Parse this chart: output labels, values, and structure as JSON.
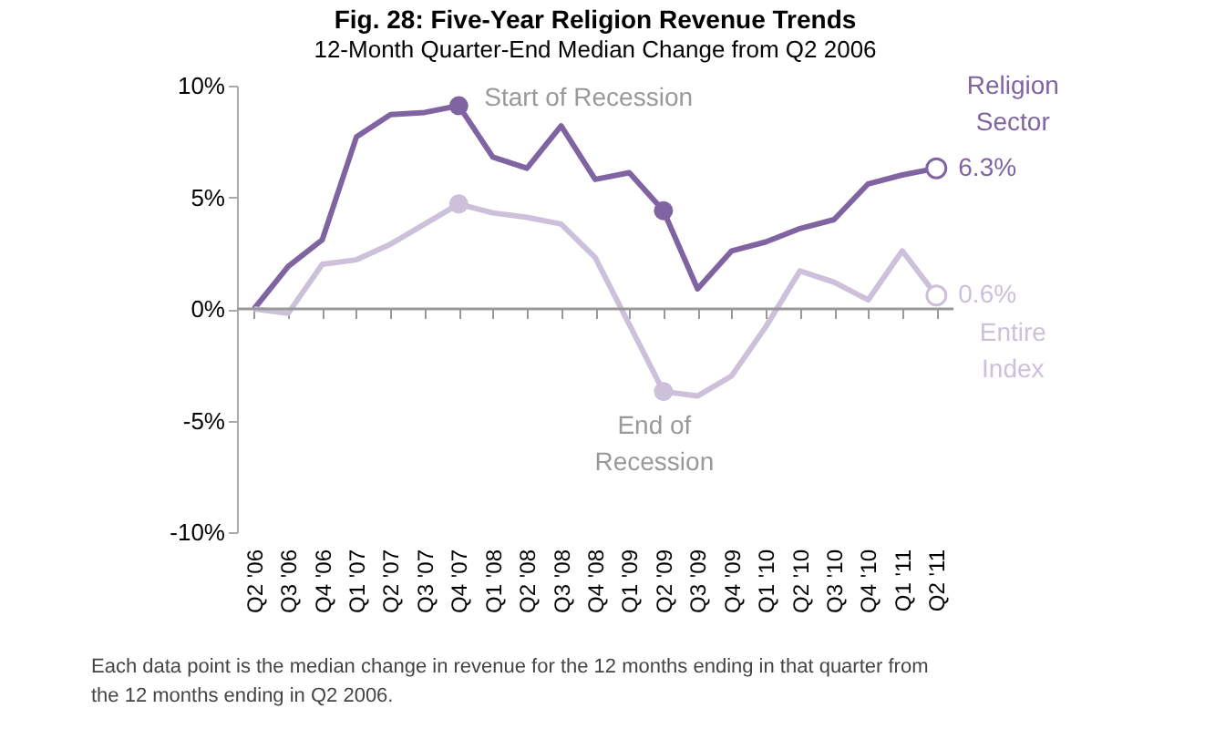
{
  "chart_data": {
    "type": "line",
    "title": "Fig. 28: Five-Year Religion Revenue Trends",
    "subtitle": "12-Month Quarter-End Median Change from Q2 2006",
    "categories": [
      "Q2 '06",
      "Q3 '06",
      "Q4 '06",
      "Q1 '07",
      "Q2 '07",
      "Q3 '07",
      "Q4 '07",
      "Q1 '08",
      "Q2 '08",
      "Q3 '08",
      "Q4 '08",
      "Q1 '09",
      "Q2 '09",
      "Q3 '09",
      "Q4 '09",
      "Q1 '10",
      "Q2 '10",
      "Q3 '10",
      "Q4 '10",
      "Q1 '11",
      "Q2 '11"
    ],
    "series": [
      {
        "name": "Religion Sector",
        "color": "#8064a2",
        "values": [
          0,
          1.9,
          3.1,
          7.7,
          8.7,
          8.8,
          9.1,
          6.8,
          6.3,
          8.2,
          5.8,
          6.1,
          4.4,
          0.9,
          2.6,
          3.0,
          3.6,
          4.0,
          5.6,
          6.0,
          6.3
        ],
        "value_labels": [
          null,
          null,
          null,
          null,
          null,
          null,
          null,
          null,
          null,
          null,
          null,
          null,
          null,
          null,
          null,
          null,
          null,
          null,
          null,
          null,
          "6.3%"
        ]
      },
      {
        "name": "Entire Index",
        "color": "#ccc0da",
        "values": [
          0,
          -0.2,
          2.0,
          2.2,
          2.9,
          3.8,
          4.7,
          4.3,
          4.1,
          3.8,
          2.3,
          -0.7,
          -3.7,
          -3.9,
          -3.0,
          -0.8,
          1.7,
          1.2,
          0.4,
          2.6,
          0.6
        ],
        "value_labels": [
          null,
          null,
          null,
          null,
          null,
          null,
          null,
          null,
          null,
          null,
          null,
          null,
          null,
          null,
          null,
          null,
          null,
          null,
          null,
          null,
          "0.6%"
        ]
      }
    ],
    "ylim": [
      -10,
      10
    ],
    "yticks": [
      {
        "value": -10,
        "label": "-10%"
      },
      {
        "value": -5,
        "label": "-5%"
      },
      {
        "value": 0,
        "label": "0%"
      },
      {
        "value": 5,
        "label": "5%"
      },
      {
        "value": 10,
        "label": "10%"
      }
    ],
    "ref_lines": [
      {
        "axis": "y",
        "value": 0,
        "color": "#999999",
        "line_style": "solid"
      }
    ],
    "grid": false,
    "legend": false,
    "marker": "none",
    "line_style": "solid",
    "annotations": [
      {
        "text": "Start of Recession",
        "x": "Q4 '07",
        "y": 9.1
      },
      {
        "text": "End of Recession",
        "x": "Q2 '09",
        "y": -3.7
      },
      "Each data point is the median change in revenue for the 12 months ending in that quarter from the 12 months ending in Q2 2006."
    ]
  }
}
